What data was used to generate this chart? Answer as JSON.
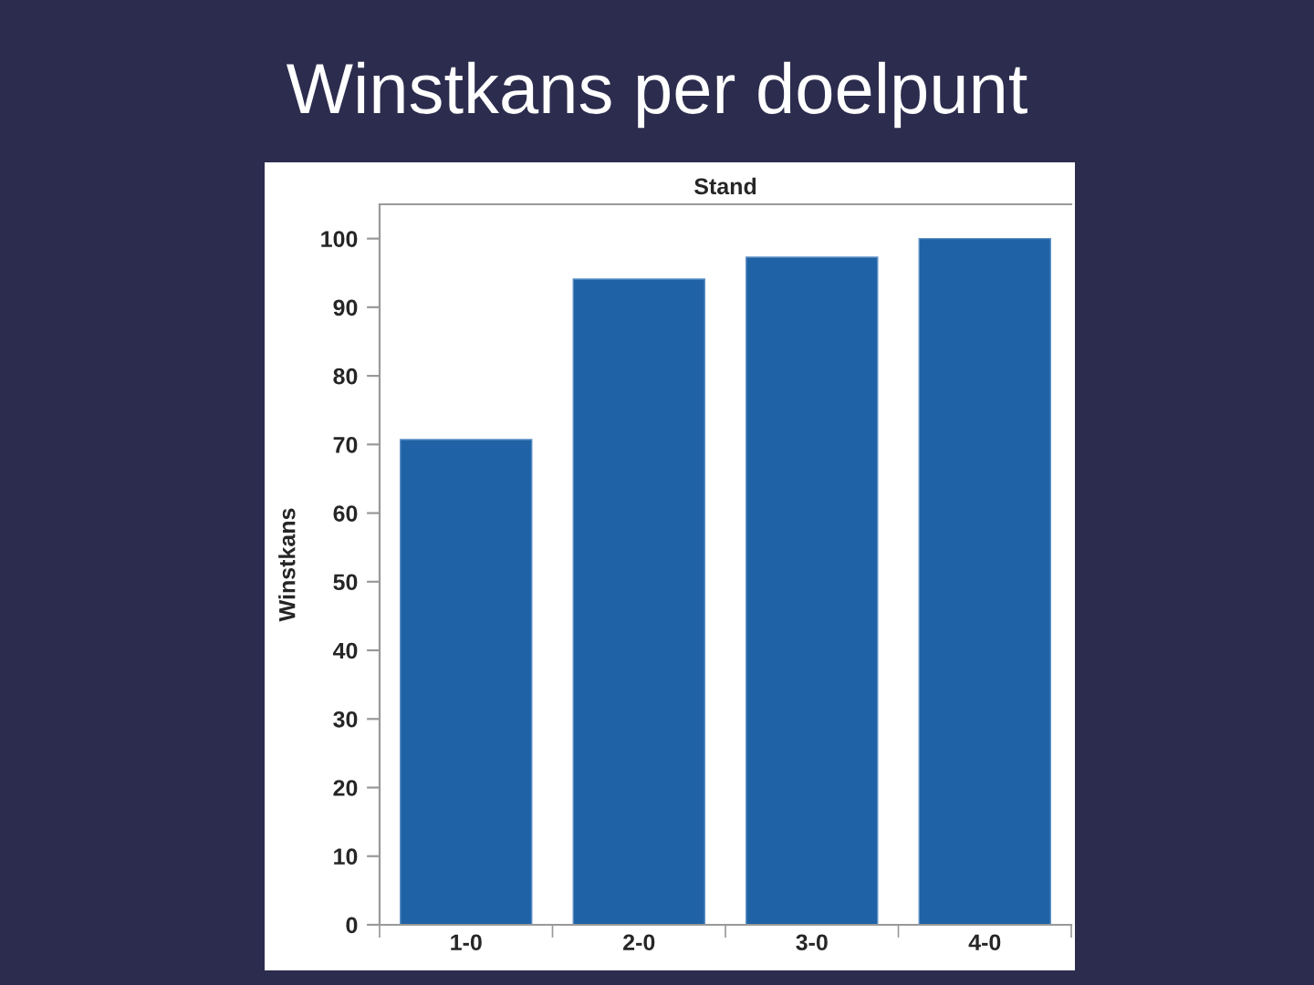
{
  "chart_data": {
    "type": "bar",
    "title": "Winstkans per doelpunt",
    "subtitle": "Stand",
    "ylabel": "Winstkans",
    "categories": [
      "1-0",
      "2-0",
      "3-0",
      "4-0"
    ],
    "values": [
      70.7,
      94.1,
      97.3,
      100
    ],
    "color": "#1f62a5",
    "ylim": [
      0,
      105
    ],
    "yticks": [
      0,
      10,
      20,
      30,
      40,
      50,
      60,
      70,
      80,
      90,
      100
    ],
    "grid": false
  }
}
